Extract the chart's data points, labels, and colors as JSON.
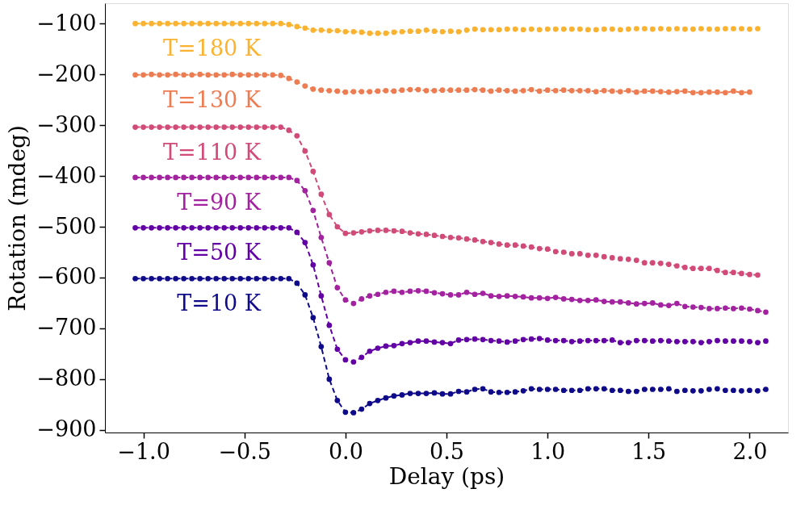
{
  "chart_data": {
    "type": "line",
    "xlabel": "Delay (ps)",
    "ylabel": "Rotation (mdeg)",
    "x": [
      -1.04,
      -1.0,
      -0.96,
      -0.92,
      -0.88,
      -0.84,
      -0.8,
      -0.76,
      -0.72,
      -0.68,
      -0.64,
      -0.6,
      -0.56,
      -0.52,
      -0.48,
      -0.44,
      -0.4,
      -0.36,
      -0.32,
      -0.28,
      -0.24,
      -0.2,
      -0.16,
      -0.12,
      -0.08,
      -0.04,
      0.0,
      0.04,
      0.08,
      0.12,
      0.16,
      0.2,
      0.24,
      0.28,
      0.32,
      0.36,
      0.4,
      0.44,
      0.48,
      0.52,
      0.56,
      0.6,
      0.64,
      0.68,
      0.72,
      0.76,
      0.8,
      0.84,
      0.88,
      0.92,
      0.96,
      1.0,
      1.04,
      1.08,
      1.12,
      1.16,
      1.2,
      1.24,
      1.28,
      1.32,
      1.36,
      1.4,
      1.44,
      1.48,
      1.52,
      1.56,
      1.6,
      1.64,
      1.68,
      1.72,
      1.76,
      1.8,
      1.84,
      1.88,
      1.92,
      1.96,
      2.0,
      2.04,
      2.08
    ],
    "series": [
      {
        "name": "T=180 K",
        "color": "#fbb32f",
        "values": [
          -100,
          -100,
          -100,
          -100,
          -100,
          -100,
          -100,
          -100,
          -100,
          -100,
          -100,
          -100,
          -100,
          -100,
          -100,
          -100,
          -100,
          -100,
          -100,
          -102,
          -106,
          -109,
          -113,
          -113,
          -114,
          -114,
          -116,
          -116,
          -117,
          -119,
          -119,
          -119,
          -117,
          -116,
          -115,
          -115,
          -113,
          -115,
          -116,
          -115,
          -116,
          -113,
          -111,
          -112,
          -112,
          -112,
          -111,
          -111,
          -112,
          -111,
          -112,
          -111,
          -111,
          -111,
          -111,
          -111,
          -112,
          -112,
          -111,
          -111,
          -112,
          -111,
          -110,
          -110,
          -111,
          -110,
          -111,
          -110,
          -111,
          -111,
          -110,
          -111,
          -111,
          -110,
          -110,
          -110,
          -111,
          -110,
          null
        ]
      },
      {
        "name": "T=130 K",
        "color": "#ee7c52",
        "values": [
          -201,
          -201,
          -200,
          -201,
          -201,
          -200,
          -201,
          -201,
          -200,
          -201,
          -201,
          -201,
          -200,
          -201,
          -201,
          -201,
          -201,
          -201,
          -202,
          -208,
          -215,
          -223,
          -229,
          -231,
          -232,
          -233,
          -235,
          -234,
          -234,
          -234,
          -233,
          -232,
          -233,
          -231,
          -230,
          -230,
          -232,
          -232,
          -231,
          -231,
          -231,
          -231,
          -230,
          -231,
          -233,
          -231,
          -232,
          -233,
          -232,
          -230,
          -233,
          -231,
          -232,
          -231,
          -232,
          -232,
          -232,
          -234,
          -232,
          -233,
          -234,
          -232,
          -235,
          -233,
          -233,
          -234,
          -235,
          -234,
          -233,
          -236,
          -236,
          -235,
          -235,
          -236,
          -233,
          -236,
          -235,
          null,
          null
        ]
      },
      {
        "name": "T=110 K",
        "color": "#d14a78",
        "values": [
          -304,
          -304,
          -304,
          -304,
          -304,
          -304,
          -304,
          -304,
          -304,
          -304,
          -304,
          -304,
          -304,
          -304,
          -304,
          -304,
          -304,
          -304,
          -304,
          -310,
          -321,
          -351,
          -391,
          -436,
          -476,
          -500,
          -513,
          -512,
          -510,
          -508,
          -507,
          -507,
          -508,
          -509,
          -512,
          -514,
          -515,
          -517,
          -519,
          -521,
          -522,
          -524,
          -526,
          -529,
          -531,
          -534,
          -536,
          -536,
          -538,
          -540,
          -543,
          -544,
          -549,
          -550,
          -553,
          -553,
          -556,
          -556,
          -559,
          -561,
          -563,
          -564,
          -566,
          -571,
          -571,
          -572,
          -574,
          -577,
          -580,
          -582,
          -582,
          -582,
          -586,
          -590,
          -590,
          -592,
          -594,
          -595,
          null
        ]
      },
      {
        "name": "T=90 K",
        "color": "#a3229f",
        "values": [
          -403,
          -403,
          -403,
          -403,
          -403,
          -403,
          -403,
          -403,
          -403,
          -403,
          -403,
          -403,
          -403,
          -403,
          -403,
          -403,
          -403,
          -403,
          -403,
          -403,
          -409,
          -429,
          -468,
          -521,
          -571,
          -620,
          -644,
          -651,
          -642,
          -636,
          -633,
          -629,
          -627,
          -629,
          -627,
          -626,
          -627,
          -630,
          -632,
          -634,
          -634,
          -629,
          -633,
          -631,
          -636,
          -637,
          -636,
          -637,
          -638,
          -640,
          -640,
          -641,
          -639,
          -642,
          -643,
          -645,
          -645,
          -644,
          -647,
          -648,
          -648,
          -650,
          -652,
          -651,
          -650,
          -654,
          -655,
          -651,
          -657,
          -658,
          -659,
          -661,
          -661,
          -660,
          -661,
          -660,
          -662,
          -665,
          -668
        ]
      },
      {
        "name": "T=50 K",
        "color": "#6200a6",
        "values": [
          -502,
          -502,
          -502,
          -502,
          -502,
          -502,
          -502,
          -502,
          -502,
          -502,
          -502,
          -502,
          -502,
          -502,
          -502,
          -502,
          -502,
          -502,
          -502,
          -502,
          -511,
          -531,
          -575,
          -636,
          -694,
          -741,
          -762,
          -766,
          -757,
          -745,
          -739,
          -735,
          -734,
          -730,
          -728,
          -725,
          -725,
          -727,
          -728,
          -730,
          -723,
          -722,
          -721,
          -722,
          -724,
          -725,
          -727,
          -725,
          -722,
          -721,
          -720,
          -723,
          -724,
          -724,
          -726,
          -725,
          -724,
          -724,
          -724,
          -723,
          -728,
          -728,
          -724,
          -724,
          -725,
          -724,
          -725,
          -726,
          -726,
          -726,
          -728,
          -726,
          -724,
          -725,
          -725,
          -725,
          -726,
          -728,
          -725
        ]
      },
      {
        "name": "T=10 K",
        "color": "#0e0a8a",
        "values": [
          -602,
          -602,
          -602,
          -602,
          -602,
          -602,
          -602,
          -602,
          -602,
          -602,
          -602,
          -602,
          -602,
          -602,
          -602,
          -602,
          -602,
          -602,
          -602,
          -602,
          -611,
          -634,
          -679,
          -736,
          -800,
          -842,
          -865,
          -866,
          -859,
          -848,
          -842,
          -837,
          -833,
          -831,
          -828,
          -828,
          -828,
          -827,
          -829,
          -829,
          -824,
          -825,
          -820,
          -819,
          -825,
          -826,
          -826,
          -825,
          -823,
          -819,
          -820,
          -820,
          -820,
          -822,
          -822,
          -822,
          -819,
          -819,
          -819,
          -822,
          -822,
          -824,
          -824,
          -820,
          -820,
          -820,
          -819,
          -824,
          -822,
          -823,
          -823,
          -820,
          -819,
          -822,
          -822,
          -823,
          -822,
          -823,
          -820
        ]
      }
    ],
    "xlim": [
      -1.19,
      2.19
    ],
    "xticks": [
      {
        "value": -1.0,
        "label": "−1.0"
      },
      {
        "value": -0.5,
        "label": "−0.5"
      },
      {
        "value": 0.0,
        "label": "0.0"
      },
      {
        "value": 0.5,
        "label": "0.5"
      },
      {
        "value": 1.0,
        "label": "1.0"
      },
      {
        "value": 1.5,
        "label": "1.5"
      },
      {
        "value": 2.0,
        "label": "2.0"
      }
    ],
    "ylim": [
      -905,
      -60
    ],
    "yticks": [
      {
        "value": -900,
        "label": "−900"
      },
      {
        "value": -800,
        "label": "−800"
      },
      {
        "value": -700,
        "label": "−700"
      },
      {
        "value": -600,
        "label": "−600"
      },
      {
        "value": -500,
        "label": "−500"
      },
      {
        "value": -400,
        "label": "−400"
      },
      {
        "value": -300,
        "label": "−300"
      },
      {
        "value": -200,
        "label": "−200"
      },
      {
        "value": -100,
        "label": "−100"
      }
    ],
    "grid": false,
    "legend": false,
    "marker": "circle",
    "line_style": "dashed"
  }
}
